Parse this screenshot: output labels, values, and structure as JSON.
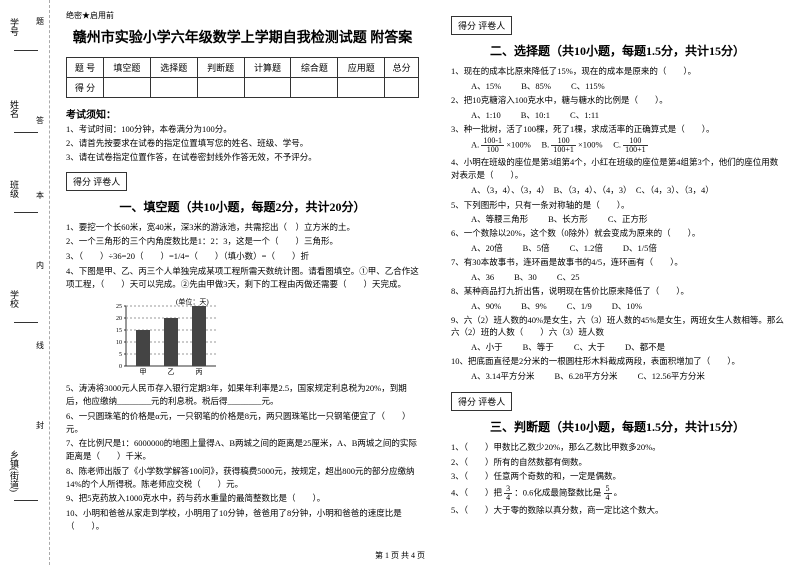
{
  "margin": {
    "labels": [
      "学号",
      "姓名",
      "班级",
      "学校",
      "乡镇(街道)"
    ],
    "sidetexts": [
      "题",
      "答",
      "本",
      "内",
      "线",
      "封"
    ]
  },
  "secret": "绝密★启用前",
  "title": "赣州市实验小学六年级数学上学期自我检测试题 附答案",
  "scoreTable": {
    "headers": [
      "题  号",
      "填空题",
      "选择题",
      "判断题",
      "计算题",
      "综合题",
      "应用题",
      "总分"
    ],
    "rowLabel": "得  分"
  },
  "noticeHead": "考试须知：",
  "notices": [
    "1、考试时间：100分钟，本卷满分为100分。",
    "2、请首先按要求在试卷的指定位置填写您的姓名、班级、学号。",
    "3、请在试卷指定位置作答，在试卷密封线外作答无效，不予评分。"
  ],
  "sectionBar": "得分  评卷人",
  "s1": {
    "title": "一、填空题（共10小题，每题2分，共计20分）"
  },
  "q1": "1、要挖一个长60米，宽40米，深3米的游泳池，共需挖出（　）立方米的土。",
  "q2": "2、一个三角形的三个内角度数比是1：2：3，这是一个（　　）三角形。",
  "q3": "3、（　　）÷36=20（　　）=1/4=（　　）（填小数）=（　　）折",
  "q4": "4、下图是甲、乙、丙三个人单独完成某项工程所需天数统计图。请看图填空。①甲、乙合作这项工程，（　　）天可以完成。②先由甲做3天，剩下的工程由丙做还需要（　　）天完成。",
  "chart": {
    "ylabel": "(单位：天)",
    "yticks": [
      "25",
      "20",
      "15",
      "10",
      "5",
      "0"
    ],
    "xlabels": [
      "甲",
      "乙",
      "丙"
    ],
    "values": [
      15,
      20,
      25
    ],
    "ymax": 25,
    "bar_color": "#444",
    "grid_color": "#333"
  },
  "q5": "5、涛涛将3000元人民币存入银行定期3年，如果年利率是2.5，国家规定利息税为20%，到期后，他应缴纳________元的利息税。税后得________元。",
  "q6": "6、一只圆珠笔的价格是α元，一只钢笔的价格是8元，两只圆珠笔比一只钢笔便宜了（　　）元。",
  "q7": "7、在比例尺是1：6000000的地图上量得A、B两城之间的距离是25厘米，A、B两城之间的实际距离是（　　）千米。",
  "q8": "8、陈老师出版了《小学数学解答100问》，获得稿费5000元，按规定，超出800元的部分应缴纳14%的个人所得税。陈老师应交税（　　）元。",
  "q9": "9、把5克药放入1000克水中，药与药水重量的最简整数比是（　　）。",
  "q10": "10、小明和爸爸从家走到学校，小明用了10分钟，爸爸用了8分钟，小明和爸爸的速度比是（　　）。",
  "s2": {
    "title": "二、选择题（共10小题，每题1.5分，共计15分）"
  },
  "c1": "1、现在的成本比原来降低了15%，现在的成本是原来的（　　）。",
  "c1o": [
    "A、15%",
    "B、85%",
    "C、115%"
  ],
  "c2": "2、把10克糖溶入100克水中，糖与糖水的比例是（　　）。",
  "c2o": [
    "A、1:10",
    "B、10:1",
    "C、1:11"
  ],
  "c3": "3、种一批树，活了100棵，死了1棵，求成活率的正确算式是（　　）。",
  "c3o": {
    "a": "A.",
    "aN": "100-1",
    "aD": "100",
    "b": "B.",
    "bN": "100+1",
    "c": "C.",
    "cN": "100",
    "cD": "100+1",
    "pct": "×100%"
  },
  "c4": "4、小明在班级的座位是第3组第4个，小红在班级的座位是第4组第3个，他们的座位用数对表示是（　　）。",
  "c4o": [
    "A、（3，4）、（3，4）",
    "B、（3，4）、（4，3）",
    "C、（4，3）、（3，4）"
  ],
  "c5": "5、下列图形中，只有一条对称轴的是（　　）。",
  "c5o": [
    "A、等腰三角形",
    "B、长方形",
    "C、正方形"
  ],
  "c6": "6、一个数除以20%，这个数（0除外）就会变成为原来的（　　）。",
  "c6o": [
    "A、20倍",
    "B、5倍",
    "C、1.2倍",
    "D、1/5倍"
  ],
  "c7": "7、有30本故事书，连环画是故事书的4/5，连环画有（　　）。",
  "c7o": [
    "A、36",
    "B、30",
    "C、25"
  ],
  "c8": "8、某种商品打九折出售，说明现在售价比原来降低了（　　）。",
  "c8o": [
    "A、90%",
    "B、9%",
    "C、1/9",
    "D、10%"
  ],
  "c9": "9、六（2）班人数的40%是女生，六（3）班人数的45%是女生，两班女生人数相等。那么六（2）班的人数（　　）六（3）班人数",
  "c9o": [
    "A、小于",
    "B、等于",
    "C、大于",
    "D、都不是"
  ],
  "c10": "10、把底面直径是2分米的一根圆柱形木料截成两段，表面积增加了（　　）。",
  "c10o": [
    "A、3.14平方分米",
    "B、6.28平方分米",
    "C、12.56平方分米"
  ],
  "s3": {
    "title": "三、判断题（共10小题，每题1.5分，共计15分）"
  },
  "j1": "1、（　　）甲数比乙数少20%，那么乙数比甲数多20%。",
  "j2": "2、（　　）所有的自然数都有倒数。",
  "j3": "3、（　　）任意两个奇数的和，一定是偶数。",
  "j4pre": "4、（　　）把",
  "j4frac": {
    "n": "3",
    "d": "4"
  },
  "j4post": "：0.6化成最简整数比是",
  "j4frac2": {
    "n": "5",
    "d": "4"
  },
  "j4end": "。",
  "j5": "5、（　　）大于零的数除以真分数，商一定比这个数大。",
  "footer": "第 1 页  共 4 页"
}
